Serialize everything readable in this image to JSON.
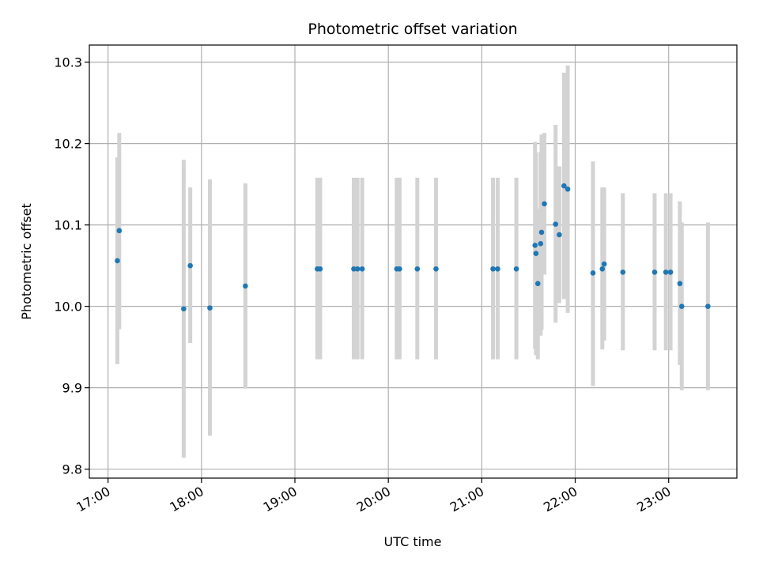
{
  "chart_data": {
    "type": "scatter",
    "title": "Photometric offset variation",
    "xlabel": "UTC time",
    "ylabel": "Photometric offset",
    "x_unit": "hours UTC",
    "xlim": [
      16.8,
      23.73
    ],
    "ylim": [
      9.789,
      10.321
    ],
    "xticks": [
      17,
      18,
      19,
      20,
      21,
      22,
      23
    ],
    "xtick_labels": [
      "17:00",
      "18:00",
      "19:00",
      "20:00",
      "21:00",
      "22:00",
      "23:00"
    ],
    "yticks": [
      9.8,
      9.9,
      10.0,
      10.1,
      10.2,
      10.3
    ],
    "ytick_labels": [
      "9.8",
      "9.9",
      "10.0",
      "10.1",
      "10.2",
      "10.3"
    ],
    "grid": true,
    "colors": {
      "point": "#1f77b4",
      "errorbar": "#d3d3d3",
      "grid": "#b0b0b0"
    },
    "points": [
      {
        "x": 17.1,
        "y": 10.056,
        "ylo": 9.929,
        "yhi": 10.183
      },
      {
        "x": 17.12,
        "y": 10.093,
        "ylo": 9.972,
        "yhi": 10.213
      },
      {
        "x": 17.81,
        "y": 9.997,
        "ylo": 9.814,
        "yhi": 10.18
      },
      {
        "x": 17.88,
        "y": 10.05,
        "ylo": 9.955,
        "yhi": 10.146
      },
      {
        "x": 18.09,
        "y": 9.998,
        "ylo": 9.841,
        "yhi": 10.156
      },
      {
        "x": 18.47,
        "y": 10.025,
        "ylo": 9.899,
        "yhi": 10.151
      },
      {
        "x": 19.24,
        "y": 10.046,
        "ylo": 9.935,
        "yhi": 10.158
      },
      {
        "x": 19.27,
        "y": 10.046,
        "ylo": 9.935,
        "yhi": 10.158
      },
      {
        "x": 19.63,
        "y": 10.046,
        "ylo": 9.935,
        "yhi": 10.158
      },
      {
        "x": 19.67,
        "y": 10.046,
        "ylo": 9.935,
        "yhi": 10.158
      },
      {
        "x": 19.72,
        "y": 10.046,
        "ylo": 9.935,
        "yhi": 10.158
      },
      {
        "x": 20.09,
        "y": 10.046,
        "ylo": 9.935,
        "yhi": 10.158
      },
      {
        "x": 20.12,
        "y": 10.046,
        "ylo": 9.935,
        "yhi": 10.158
      },
      {
        "x": 20.31,
        "y": 10.046,
        "ylo": 9.935,
        "yhi": 10.158
      },
      {
        "x": 20.51,
        "y": 10.046,
        "ylo": 9.935,
        "yhi": 10.158
      },
      {
        "x": 21.12,
        "y": 10.046,
        "ylo": 9.935,
        "yhi": 10.158
      },
      {
        "x": 21.17,
        "y": 10.046,
        "ylo": 9.935,
        "yhi": 10.158
      },
      {
        "x": 21.37,
        "y": 10.046,
        "ylo": 9.935,
        "yhi": 10.158
      },
      {
        "x": 21.57,
        "y": 10.075,
        "ylo": 9.948,
        "yhi": 10.202
      },
      {
        "x": 21.58,
        "y": 10.065,
        "ylo": 9.94,
        "yhi": 10.189
      },
      {
        "x": 21.6,
        "y": 10.028,
        "ylo": 9.935,
        "yhi": 10.12
      },
      {
        "x": 21.63,
        "y": 10.077,
        "ylo": 9.964,
        "yhi": 10.19
      },
      {
        "x": 21.64,
        "y": 10.091,
        "ylo": 9.971,
        "yhi": 10.211
      },
      {
        "x": 21.67,
        "y": 10.126,
        "ylo": 10.039,
        "yhi": 10.213
      },
      {
        "x": 21.79,
        "y": 10.101,
        "ylo": 9.98,
        "yhi": 10.223
      },
      {
        "x": 21.83,
        "y": 10.088,
        "ylo": 10.004,
        "yhi": 10.172
      },
      {
        "x": 21.88,
        "y": 10.148,
        "ylo": 10.009,
        "yhi": 10.287
      },
      {
        "x": 21.92,
        "y": 10.144,
        "ylo": 9.992,
        "yhi": 10.296
      },
      {
        "x": 22.19,
        "y": 10.041,
        "ylo": 9.902,
        "yhi": 10.178
      },
      {
        "x": 22.29,
        "y": 10.046,
        "ylo": 9.947,
        "yhi": 10.146
      },
      {
        "x": 22.31,
        "y": 10.052,
        "ylo": 9.958,
        "yhi": 10.146
      },
      {
        "x": 22.51,
        "y": 10.042,
        "ylo": 9.946,
        "yhi": 10.139
      },
      {
        "x": 22.85,
        "y": 10.042,
        "ylo": 9.946,
        "yhi": 10.139
      },
      {
        "x": 22.97,
        "y": 10.042,
        "ylo": 9.946,
        "yhi": 10.139
      },
      {
        "x": 23.02,
        "y": 10.042,
        "ylo": 9.946,
        "yhi": 10.139
      },
      {
        "x": 23.12,
        "y": 10.028,
        "ylo": 9.928,
        "yhi": 10.129
      },
      {
        "x": 23.14,
        "y": 10.0,
        "ylo": 9.897,
        "yhi": 10.103
      },
      {
        "x": 23.42,
        "y": 10.0,
        "ylo": 9.897,
        "yhi": 10.103
      }
    ]
  }
}
